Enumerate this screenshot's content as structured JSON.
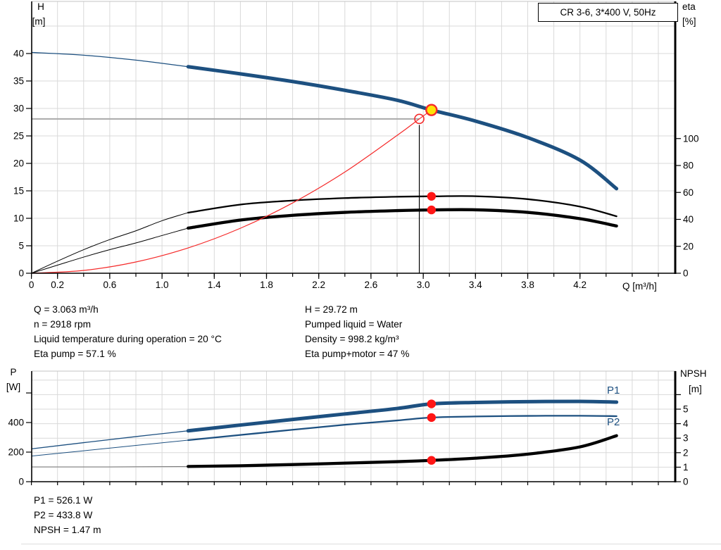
{
  "colors": {
    "curve_blue": "#1d5080",
    "curve_black": "#000000",
    "curve_red": "#f52a2a",
    "dot_red": "#ff1515",
    "duty_yellow": "#ffe207",
    "grid": "#d9d9d9",
    "border_gray": "#c3c3c3",
    "duty_gray": "#a9a9a9"
  },
  "chart_data": [
    {
      "panel": "top",
      "type": "line",
      "title": "CR 3-6, 3*400 V, 50Hz",
      "x": {
        "label": "Q [m³/h]",
        "range": [
          0,
          4.93
        ],
        "minor_step": 0.2,
        "labeled_ticks": [
          [
            0,
            "0"
          ],
          [
            0.2,
            "0.2"
          ],
          [
            0.6,
            "0.6"
          ],
          [
            1.0,
            "1.0"
          ],
          [
            1.4,
            "1.4"
          ],
          [
            1.8,
            "1.8"
          ],
          [
            2.2,
            "2.2"
          ],
          [
            2.6,
            "2.6"
          ],
          [
            3.0,
            "3.0"
          ],
          [
            3.4,
            "3.4"
          ],
          [
            3.8,
            "3.8"
          ],
          [
            4.2,
            "4.2"
          ]
        ]
      },
      "y_left": {
        "label": "H",
        "unit": "[m]",
        "range": [
          0,
          49.5
        ],
        "ticks": [
          [
            0,
            "0"
          ],
          [
            5,
            "5"
          ],
          [
            10,
            "10"
          ],
          [
            15,
            "15"
          ],
          [
            20,
            "20"
          ],
          [
            25,
            "25"
          ],
          [
            30,
            "30"
          ],
          [
            35,
            "35"
          ],
          [
            40,
            "40"
          ]
        ]
      },
      "y_right": {
        "label": "eta",
        "unit": "[%]",
        "range": [
          0,
          201
        ],
        "ticks": [
          [
            0,
            "0"
          ],
          [
            20,
            "20"
          ],
          [
            40,
            "40"
          ],
          [
            60,
            "60"
          ],
          [
            80,
            "80"
          ],
          [
            100,
            "100"
          ]
        ]
      },
      "grid_y": {
        "axis": "left",
        "values": [
          5,
          10,
          15,
          20,
          25,
          30,
          35,
          40,
          45
        ]
      },
      "series": [
        {
          "name": "head-curve",
          "axis": "left",
          "color": "#1d5080",
          "width": 5,
          "thin_width": 1.3,
          "thin_until": 1.2,
          "points": [
            [
              0,
              40.2
            ],
            [
              0.4,
              39.7
            ],
            [
              0.8,
              38.8
            ],
            [
              1.2,
              37.6
            ],
            [
              1.6,
              36.3
            ],
            [
              2.0,
              34.9
            ],
            [
              2.4,
              33.3
            ],
            [
              2.8,
              31.5
            ],
            [
              3.063,
              29.72
            ],
            [
              3.4,
              27.7
            ],
            [
              3.8,
              24.7
            ],
            [
              4.2,
              20.6
            ],
            [
              4.48,
              15.4
            ]
          ]
        },
        {
          "name": "eta-pump-curve",
          "axis": "right",
          "color": "#000000",
          "width": 2.3,
          "thin_width": 1,
          "thin_until": 1.2,
          "points": [
            [
              0,
              0
            ],
            [
              0.2,
              9
            ],
            [
              0.4,
              17.5
            ],
            [
              0.6,
              25
            ],
            [
              0.8,
              31.5
            ],
            [
              1.0,
              39
            ],
            [
              1.2,
              45
            ],
            [
              1.6,
              51
            ],
            [
              2.0,
              54
            ],
            [
              2.4,
              55.8
            ],
            [
              2.8,
              56.8
            ],
            [
              3.063,
              57.1
            ],
            [
              3.4,
              57.2
            ],
            [
              3.8,
              55
            ],
            [
              4.2,
              49.5
            ],
            [
              4.48,
              42.3
            ]
          ]
        },
        {
          "name": "eta-pump-motor-curve",
          "axis": "right",
          "color": "#000000",
          "width": 4.3,
          "thin_width": 1,
          "thin_until": 1.2,
          "points": [
            [
              0,
              0
            ],
            [
              0.2,
              6
            ],
            [
              0.4,
              12
            ],
            [
              0.6,
              17.5
            ],
            [
              0.8,
              22.5
            ],
            [
              1.0,
              28
            ],
            [
              1.2,
              33.5
            ],
            [
              1.6,
              39.5
            ],
            [
              2.0,
              43
            ],
            [
              2.4,
              45.2
            ],
            [
              2.8,
              46.5
            ],
            [
              3.063,
              47
            ],
            [
              3.4,
              47.1
            ],
            [
              3.8,
              45.2
            ],
            [
              4.2,
              40.5
            ],
            [
              4.48,
              35.1
            ]
          ]
        },
        {
          "name": "system-curve",
          "axis": "left",
          "color": "#f52a2a",
          "width": 1.2,
          "thin_width": 1.2,
          "thin_until": 0,
          "points": [
            [
              0,
              0
            ],
            [
              0.4,
              0.51
            ],
            [
              0.8,
              2.05
            ],
            [
              1.2,
              4.61
            ],
            [
              1.6,
              8.19
            ],
            [
              2.0,
              12.8
            ],
            [
              2.4,
              18.43
            ],
            [
              2.8,
              25.09
            ],
            [
              2.97,
              28.1
            ],
            [
              3.063,
              29.72
            ]
          ]
        }
      ],
      "guides": [
        {
          "type": "hline-gray",
          "axis": "left",
          "value": 28.1,
          "q_from": 0,
          "q_to": 2.97
        },
        {
          "type": "vline-black",
          "q": 2.97,
          "axis": "left",
          "v_from": 27.0,
          "v_to": 0
        }
      ],
      "markers": [
        {
          "shape": "open-circle",
          "q": 2.97,
          "axis": "left",
          "value": 28.1,
          "meaning": "requested duty point"
        },
        {
          "shape": "yellow-circle",
          "q": 3.063,
          "axis": "left",
          "value": 29.72,
          "meaning": "duty point H"
        },
        {
          "shape": "red-dot",
          "q": 3.063,
          "axis": "right",
          "value": 57.1,
          "meaning": "eta pump"
        },
        {
          "shape": "red-dot",
          "q": 3.063,
          "axis": "right",
          "value": 47,
          "meaning": "eta pump+motor"
        }
      ]
    },
    {
      "panel": "bot",
      "type": "line",
      "x": {
        "range": [
          0,
          4.93
        ],
        "minor_step": 0.2,
        "labeled_ticks": []
      },
      "y_left": {
        "label": "P",
        "unit": "[W]",
        "range": [
          0,
          748
        ],
        "ticks": [
          [
            0,
            "0"
          ],
          [
            200,
            "200"
          ],
          [
            400,
            "400"
          ],
          [
            600,
            ""
          ]
        ]
      },
      "y_right": {
        "label": "NPSH",
        "unit": "[m]",
        "range": [
          0,
          7.6
        ],
        "ticks": [
          [
            0,
            "0"
          ],
          [
            1,
            "1"
          ],
          [
            2,
            "2"
          ],
          [
            3,
            "3"
          ],
          [
            4,
            "4"
          ],
          [
            5,
            "5"
          ],
          [
            6,
            ""
          ]
        ]
      },
      "grid_y": {
        "axis": "right",
        "values": [
          1,
          2,
          3,
          4,
          5,
          6,
          7
        ]
      },
      "series": [
        {
          "name": "p1-curve",
          "axis": "left",
          "color": "#1d5080",
          "width": 5,
          "thin_width": 1.3,
          "thin_until": 1.2,
          "points": [
            [
              0,
              222
            ],
            [
              0.4,
              264
            ],
            [
              0.8,
              305
            ],
            [
              1.2,
              344
            ],
            [
              1.6,
              383
            ],
            [
              2.0,
              421
            ],
            [
              2.4,
              458
            ],
            [
              2.8,
              495
            ],
            [
              3.063,
              526.1
            ],
            [
              3.4,
              536
            ],
            [
              3.8,
              541
            ],
            [
              4.2,
              543
            ],
            [
              4.48,
              538
            ]
          ]
        },
        {
          "name": "p2-curve",
          "axis": "left",
          "color": "#1d5080",
          "width": 2.3,
          "thin_width": 1,
          "thin_until": 1.2,
          "points": [
            [
              0,
              173
            ],
            [
              0.4,
              209
            ],
            [
              0.8,
              245
            ],
            [
              1.2,
              281
            ],
            [
              1.6,
              316
            ],
            [
              2.0,
              351
            ],
            [
              2.4,
              385
            ],
            [
              2.8,
              414
            ],
            [
              3.063,
              433.8
            ],
            [
              3.4,
              441
            ],
            [
              3.8,
              445
            ],
            [
              4.2,
              446
            ],
            [
              4.48,
              443
            ]
          ]
        },
        {
          "name": "npsh-curve",
          "axis": "right",
          "color": "#000000",
          "width": 4.3,
          "thin_width": 1,
          "thin_color": "#777777",
          "thin_until": 1.2,
          "points": [
            [
              0,
              1.02
            ],
            [
              0.6,
              1.02
            ],
            [
              1.2,
              1.05
            ],
            [
              1.6,
              1.1
            ],
            [
              2.0,
              1.18
            ],
            [
              2.4,
              1.28
            ],
            [
              2.8,
              1.38
            ],
            [
              3.063,
              1.47
            ],
            [
              3.4,
              1.62
            ],
            [
              3.8,
              1.9
            ],
            [
              4.2,
              2.4
            ],
            [
              4.48,
              3.17
            ]
          ]
        }
      ],
      "guides": [],
      "markers": [
        {
          "shape": "red-dot",
          "q": 3.063,
          "axis": "left",
          "value": 526.1,
          "meaning": "P1 duty"
        },
        {
          "shape": "red-dot",
          "q": 3.063,
          "axis": "left",
          "value": 433.8,
          "meaning": "P2 duty"
        },
        {
          "shape": "red-dot",
          "q": 3.063,
          "axis": "right",
          "value": 1.47,
          "meaning": "NPSH duty"
        }
      ],
      "curve_labels": [
        {
          "text": "P1"
        },
        {
          "text": "P2"
        }
      ]
    }
  ],
  "annotations": {
    "duty_left": [
      "Q = 3.063 m³/h",
      "n = 2918 rpm",
      "Liquid temperature during operation = 20 °C",
      "Eta pump = 57.1 %"
    ],
    "duty_right": [
      "H = 29.72 m",
      "Pumped liquid = Water",
      "Density = 998.2 kg/m³",
      "Eta pump+motor = 47 %"
    ],
    "power": [
      "P1 = 526.1 W",
      "P2 = 433.8 W",
      "NPSH = 1.47 m"
    ]
  }
}
